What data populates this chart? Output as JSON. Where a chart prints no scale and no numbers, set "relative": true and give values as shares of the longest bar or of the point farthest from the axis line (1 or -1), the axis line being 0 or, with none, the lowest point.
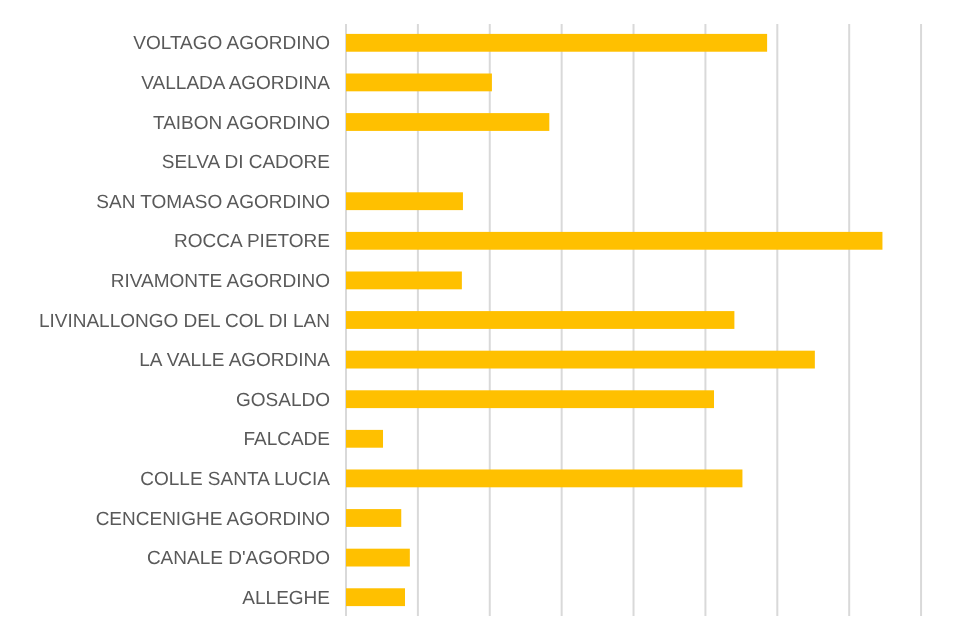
{
  "chart_data": {
    "type": "bar",
    "orientation": "horizontal",
    "relative": true,
    "grid": "x",
    "color": "#ffc000",
    "categories": [
      "VOLTAGO AGORDINO",
      "VALLADA AGORDINA",
      "TAIBON AGORDINO",
      "SELVA DI CADORE",
      "SAN TOMASO AGORDINO",
      "ROCCA PIETORE",
      "RIVAMONTE AGORDINO",
      "LIVINALLONGO DEL COL DI LAN",
      "LA VALLE AGORDINA",
      "GOSALDO",
      "FALCADE",
      "COLLE SANTA LUCIA",
      "CENCENIGHE AGORDINO",
      "CANALE D'AGORDO",
      "ALLEGHE"
    ],
    "values": [
      0.785,
      0.272,
      0.379,
      0,
      0.218,
      1,
      0.216,
      0.724,
      0.874,
      0.686,
      0.069,
      0.739,
      0.103,
      0.119,
      0.11
    ]
  }
}
